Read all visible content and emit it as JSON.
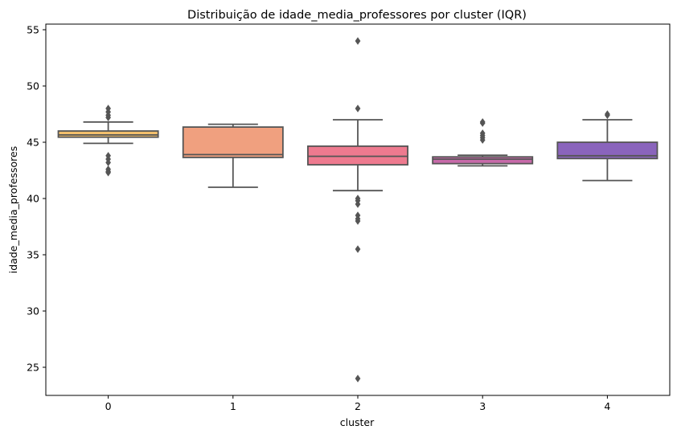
{
  "chart_data": {
    "type": "box",
    "title": "Distribuição de idade_media_professores por cluster (IQR)",
    "xlabel": "cluster",
    "ylabel": "idade_media_professores",
    "ylim": [
      22.5,
      55.5
    ],
    "yticks": [
      25,
      30,
      35,
      40,
      45,
      50,
      55
    ],
    "grid": false,
    "legend": "none",
    "categories": [
      "0",
      "1",
      "2",
      "3",
      "4"
    ],
    "boxes": [
      {
        "category": "0",
        "color": "#f2bf6c",
        "whisker_low": 44.9,
        "q1": 45.45,
        "median": 45.65,
        "q3": 46.0,
        "whisker_high": 46.8,
        "outliers": [
          47.2,
          47.4,
          47.7,
          48.0,
          43.2,
          43.5,
          43.8,
          42.6,
          42.3,
          42.4
        ]
      },
      {
        "category": "1",
        "color": "#f0a07f",
        "whisker_low": 41.0,
        "q1": 43.65,
        "median": 43.9,
        "q3": 46.35,
        "whisker_high": 46.6,
        "outliers": []
      },
      {
        "category": "2",
        "color": "#ee7a8f",
        "whisker_low": 40.7,
        "q1": 43.0,
        "median": 43.75,
        "q3": 44.65,
        "whisker_high": 47.0,
        "outliers": [
          48.0,
          54.0,
          40.0,
          39.8,
          39.5,
          38.5,
          38.2,
          38.0,
          35.5,
          24.0
        ]
      },
      {
        "category": "3",
        "color": "#c76aa9",
        "whisker_low": 42.9,
        "q1": 43.1,
        "median": 43.5,
        "q3": 43.7,
        "whisker_high": 43.85,
        "outliers": [
          45.2,
          45.4,
          45.6,
          45.8,
          46.7,
          46.8
        ]
      },
      {
        "category": "4",
        "color": "#8a64bc",
        "whisker_low": 41.6,
        "q1": 43.55,
        "median": 43.8,
        "q3": 45.0,
        "whisker_high": 47.0,
        "outliers": [
          47.4,
          47.5
        ]
      }
    ]
  }
}
